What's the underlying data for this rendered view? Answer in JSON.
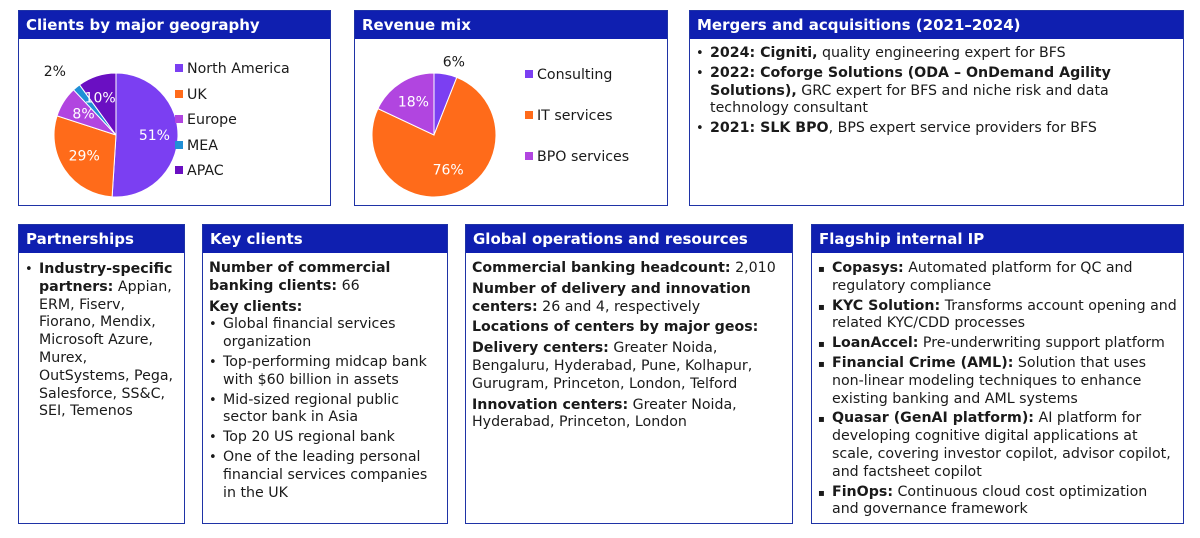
{
  "geo": {
    "header": "Clients by major geography",
    "chart_data": {
      "type": "pie",
      "title": "",
      "categories": [
        "North America",
        "UK",
        "Europe",
        "MEA",
        "APAC"
      ],
      "values": [
        51,
        29,
        8,
        2,
        10
      ],
      "labels": [
        "51%",
        "29%",
        "8%",
        "2%",
        "10%"
      ],
      "colors": [
        "#7b3ff2",
        "#ff6b1a",
        "#b145e0",
        "#1f8fd6",
        "#6a0fc2"
      ],
      "legend_position": "right"
    }
  },
  "rev": {
    "header": "Revenue mix",
    "chart_data": {
      "type": "pie",
      "title": "",
      "categories": [
        "Consulting",
        "IT services",
        "BPO services"
      ],
      "values": [
        6,
        76,
        18
      ],
      "labels": [
        "6%",
        "76%",
        "18%"
      ],
      "colors": [
        "#7b3ff2",
        "#ff6b1a",
        "#b145e0"
      ],
      "legend_position": "right"
    }
  },
  "ma": {
    "header": "Mergers and acquisitions (2021–2024)",
    "items": [
      {
        "bold": "2024: Cigniti,",
        "text": " quality engineering expert for BFS"
      },
      {
        "bold": "2022: Coforge Solutions (ODA – OnDemand Agility Solutions),",
        "text": " GRC expert for BFS and niche risk and data technology consultant"
      },
      {
        "bold": "2021: SLK BPO",
        "text": ", BPS expert service providers for BFS"
      }
    ]
  },
  "partnerships": {
    "header": "Partnerships",
    "items": [
      {
        "bold": "Industry-specific partners:",
        "text": " Appian, ERM, Fiserv, Fiorano, Mendix, Microsoft Azure, Murex, OutSystems, Pega, Salesforce, SS&C, SEI, Temenos"
      }
    ]
  },
  "key_clients": {
    "header": "Key clients",
    "count_label": "Number of commercial banking clients:",
    "count_value": " 66",
    "list_label": "Key clients:",
    "items": [
      "Global financial services organization",
      "Top-performing midcap bank with $60 billion in assets",
      "Mid-sized regional public sector bank in Asia",
      "Top 20 US regional bank",
      "One of the leading personal financial services companies in the UK"
    ]
  },
  "ops": {
    "header": "Global operations and resources",
    "headcount_label": "Commercial banking headcount:",
    "headcount_value": " 2,010",
    "centers_label": "Number of delivery and innovation centers:",
    "centers_value": " 26 and 4, respectively",
    "locations_label": "Locations of centers by major geos:",
    "delivery_label": "Delivery centers:",
    "delivery_value": " Greater Noida, Bengaluru, Hyderabad, Pune, Kolhapur, Gurugram, Princeton, London, Telford",
    "innovation_label": "Innovation centers:",
    "innovation_value": " Greater Noida, Hyderabad, Princeton, London"
  },
  "ip": {
    "header": "Flagship internal IP",
    "items": [
      {
        "bold": "Copasys:",
        "text": " Automated platform for QC and regulatory compliance"
      },
      {
        "bold": "KYC Solution:",
        "text": " Transforms account opening and related KYC/CDD processes"
      },
      {
        "bold": "LoanAccel:",
        "text": " Pre-underwriting support platform"
      },
      {
        "bold": "Financial Crime (AML):",
        "text": " Solution that uses non-linear modeling techniques to enhance existing banking and AML systems"
      },
      {
        "bold": "Quasar (GenAI platform):",
        "text": " AI platform for developing cognitive digital applications at scale, covering investor copilot, advisor copilot, and factsheet copilot"
      },
      {
        "bold": "FinOps:",
        "text": " Continuous cloud cost optimization and governance framework"
      }
    ]
  }
}
